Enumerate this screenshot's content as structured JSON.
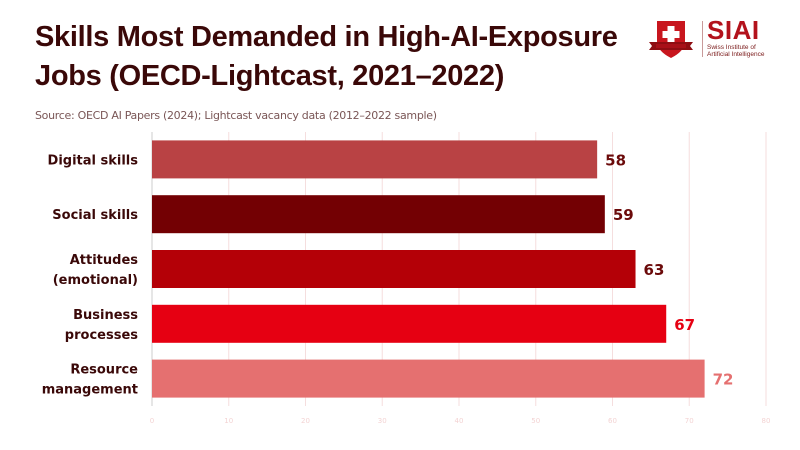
{
  "header": {
    "title_line1": "Skills Most Demanded in High-AI-Exposure",
    "title_line2": "Jobs (OECD-Lightcast, 2021–2022)",
    "source": "Source: OECD AI Papers (2024); Lightcast vacancy data (2012–2022 sample)"
  },
  "logo": {
    "name": "SIAI",
    "subtitle_line1": "Swiss Institute of",
    "subtitle_line2": "Artificial Intelligence",
    "icon": "shield-cross-icon",
    "brand_color": "#b3121c"
  },
  "chart_data": {
    "type": "bar",
    "orientation": "horizontal",
    "title": "Skills Most Demanded in High-AI-Exposure Jobs (OECD-Lightcast, 2021–2022)",
    "xlabel": "",
    "ylabel": "",
    "categories": [
      "Digital skills",
      "Social skills",
      "Attitudes (emotional)",
      "Business processes",
      "Resource management"
    ],
    "category_lines": [
      [
        "Digital skills"
      ],
      [
        "Social skills"
      ],
      [
        "Attitudes",
        "(emotional)"
      ],
      [
        "Business",
        "processes"
      ],
      [
        "Resource",
        "management"
      ]
    ],
    "values": [
      58,
      59,
      63,
      67,
      72
    ],
    "bar_colors": [
      "#b94244",
      "#730003",
      "#b40007",
      "#e60012",
      "#e57070"
    ],
    "label_colors": [
      "#6b0a0a",
      "#6b0a0a",
      "#6b0a0a",
      "#e60012",
      "#e57070"
    ],
    "xlim": [
      0,
      80
    ],
    "xticks": [
      0,
      10,
      20,
      30,
      40,
      50,
      60,
      70,
      80
    ],
    "grid": true,
    "legend": "none"
  }
}
